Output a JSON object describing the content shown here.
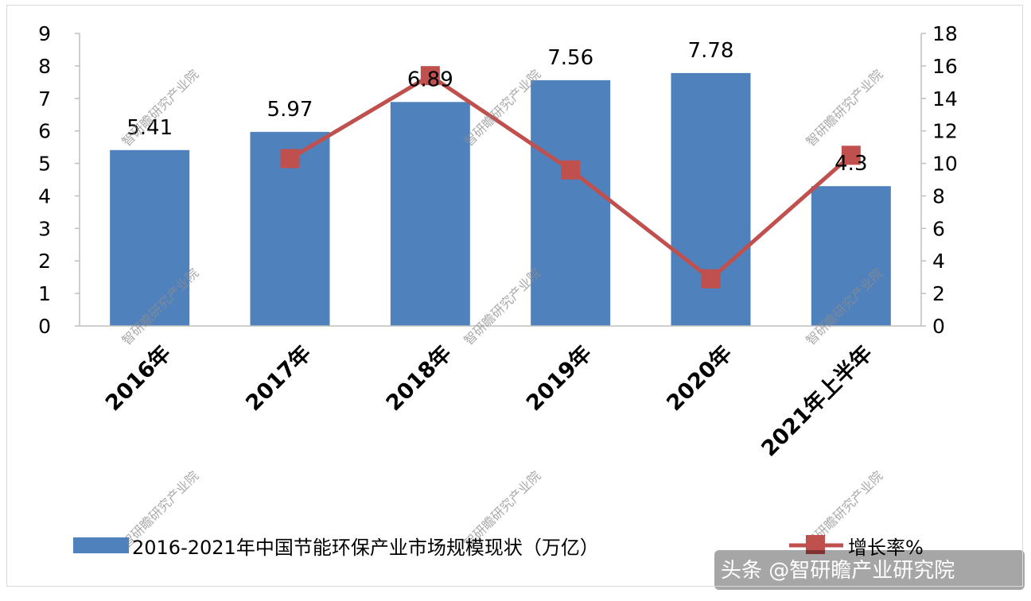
{
  "chart_data": {
    "type": "bar",
    "categories": [
      "2016年",
      "2017年",
      "2018年",
      "2019年",
      "2020年",
      "2021年上半年"
    ],
    "series": [
      {
        "name": "2016-2021年中国节能环保产业市场规模现状（万亿）",
        "type": "bar",
        "axis": "left",
        "values": [
          5.41,
          5.97,
          6.89,
          7.56,
          7.78,
          4.3
        ],
        "data_labels": [
          "5.41",
          "5.97",
          "6.89",
          "7.56",
          "7.78",
          "4.3"
        ],
        "color": "#4f81bd"
      },
      {
        "name": "增长率%",
        "type": "line",
        "axis": "right",
        "values": [
          null,
          10.3,
          15.4,
          9.6,
          2.9,
          10.5
        ],
        "color": "#c0504d"
      }
    ],
    "y_left": {
      "ylim": [
        0,
        9
      ],
      "ticks": [
        "0",
        "1",
        "2",
        "3",
        "4",
        "5",
        "6",
        "7",
        "8",
        "9"
      ]
    },
    "y_right": {
      "ylim": [
        0,
        18
      ],
      "ticks": [
        "0",
        "2",
        "4",
        "6",
        "8",
        "10",
        "12",
        "14",
        "16",
        "18"
      ]
    },
    "legend_placement": "bottom",
    "grid": false
  },
  "watermark": "智研瞻研究产业院",
  "credit": "头条 @智研瞻产业研究院"
}
